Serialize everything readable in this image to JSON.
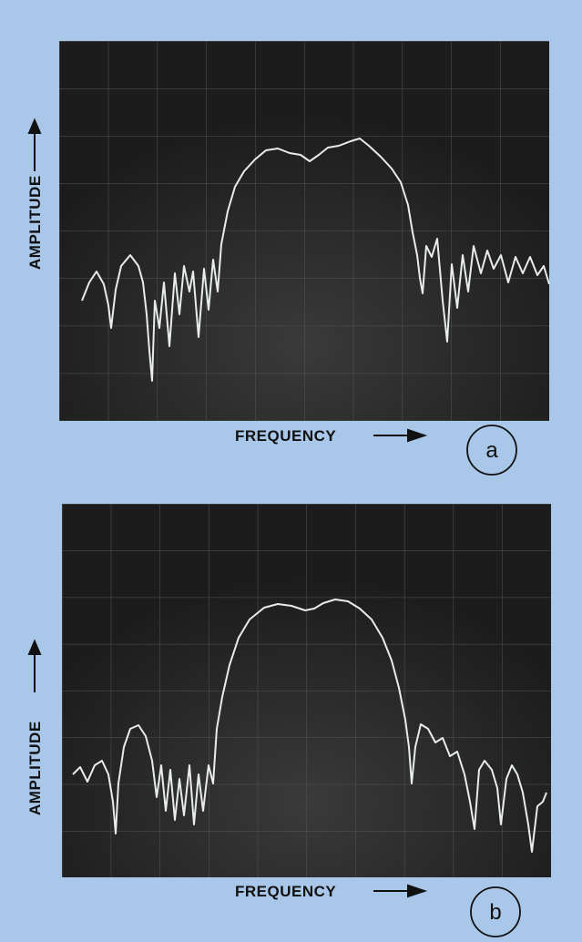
{
  "panels": [
    {
      "y_label": "AMPLITUDE",
      "x_label": "FREQUENCY",
      "tag": "a"
    },
    {
      "y_label": "AMPLITUDE",
      "x_label": "FREQUENCY",
      "tag": "b"
    }
  ]
}
